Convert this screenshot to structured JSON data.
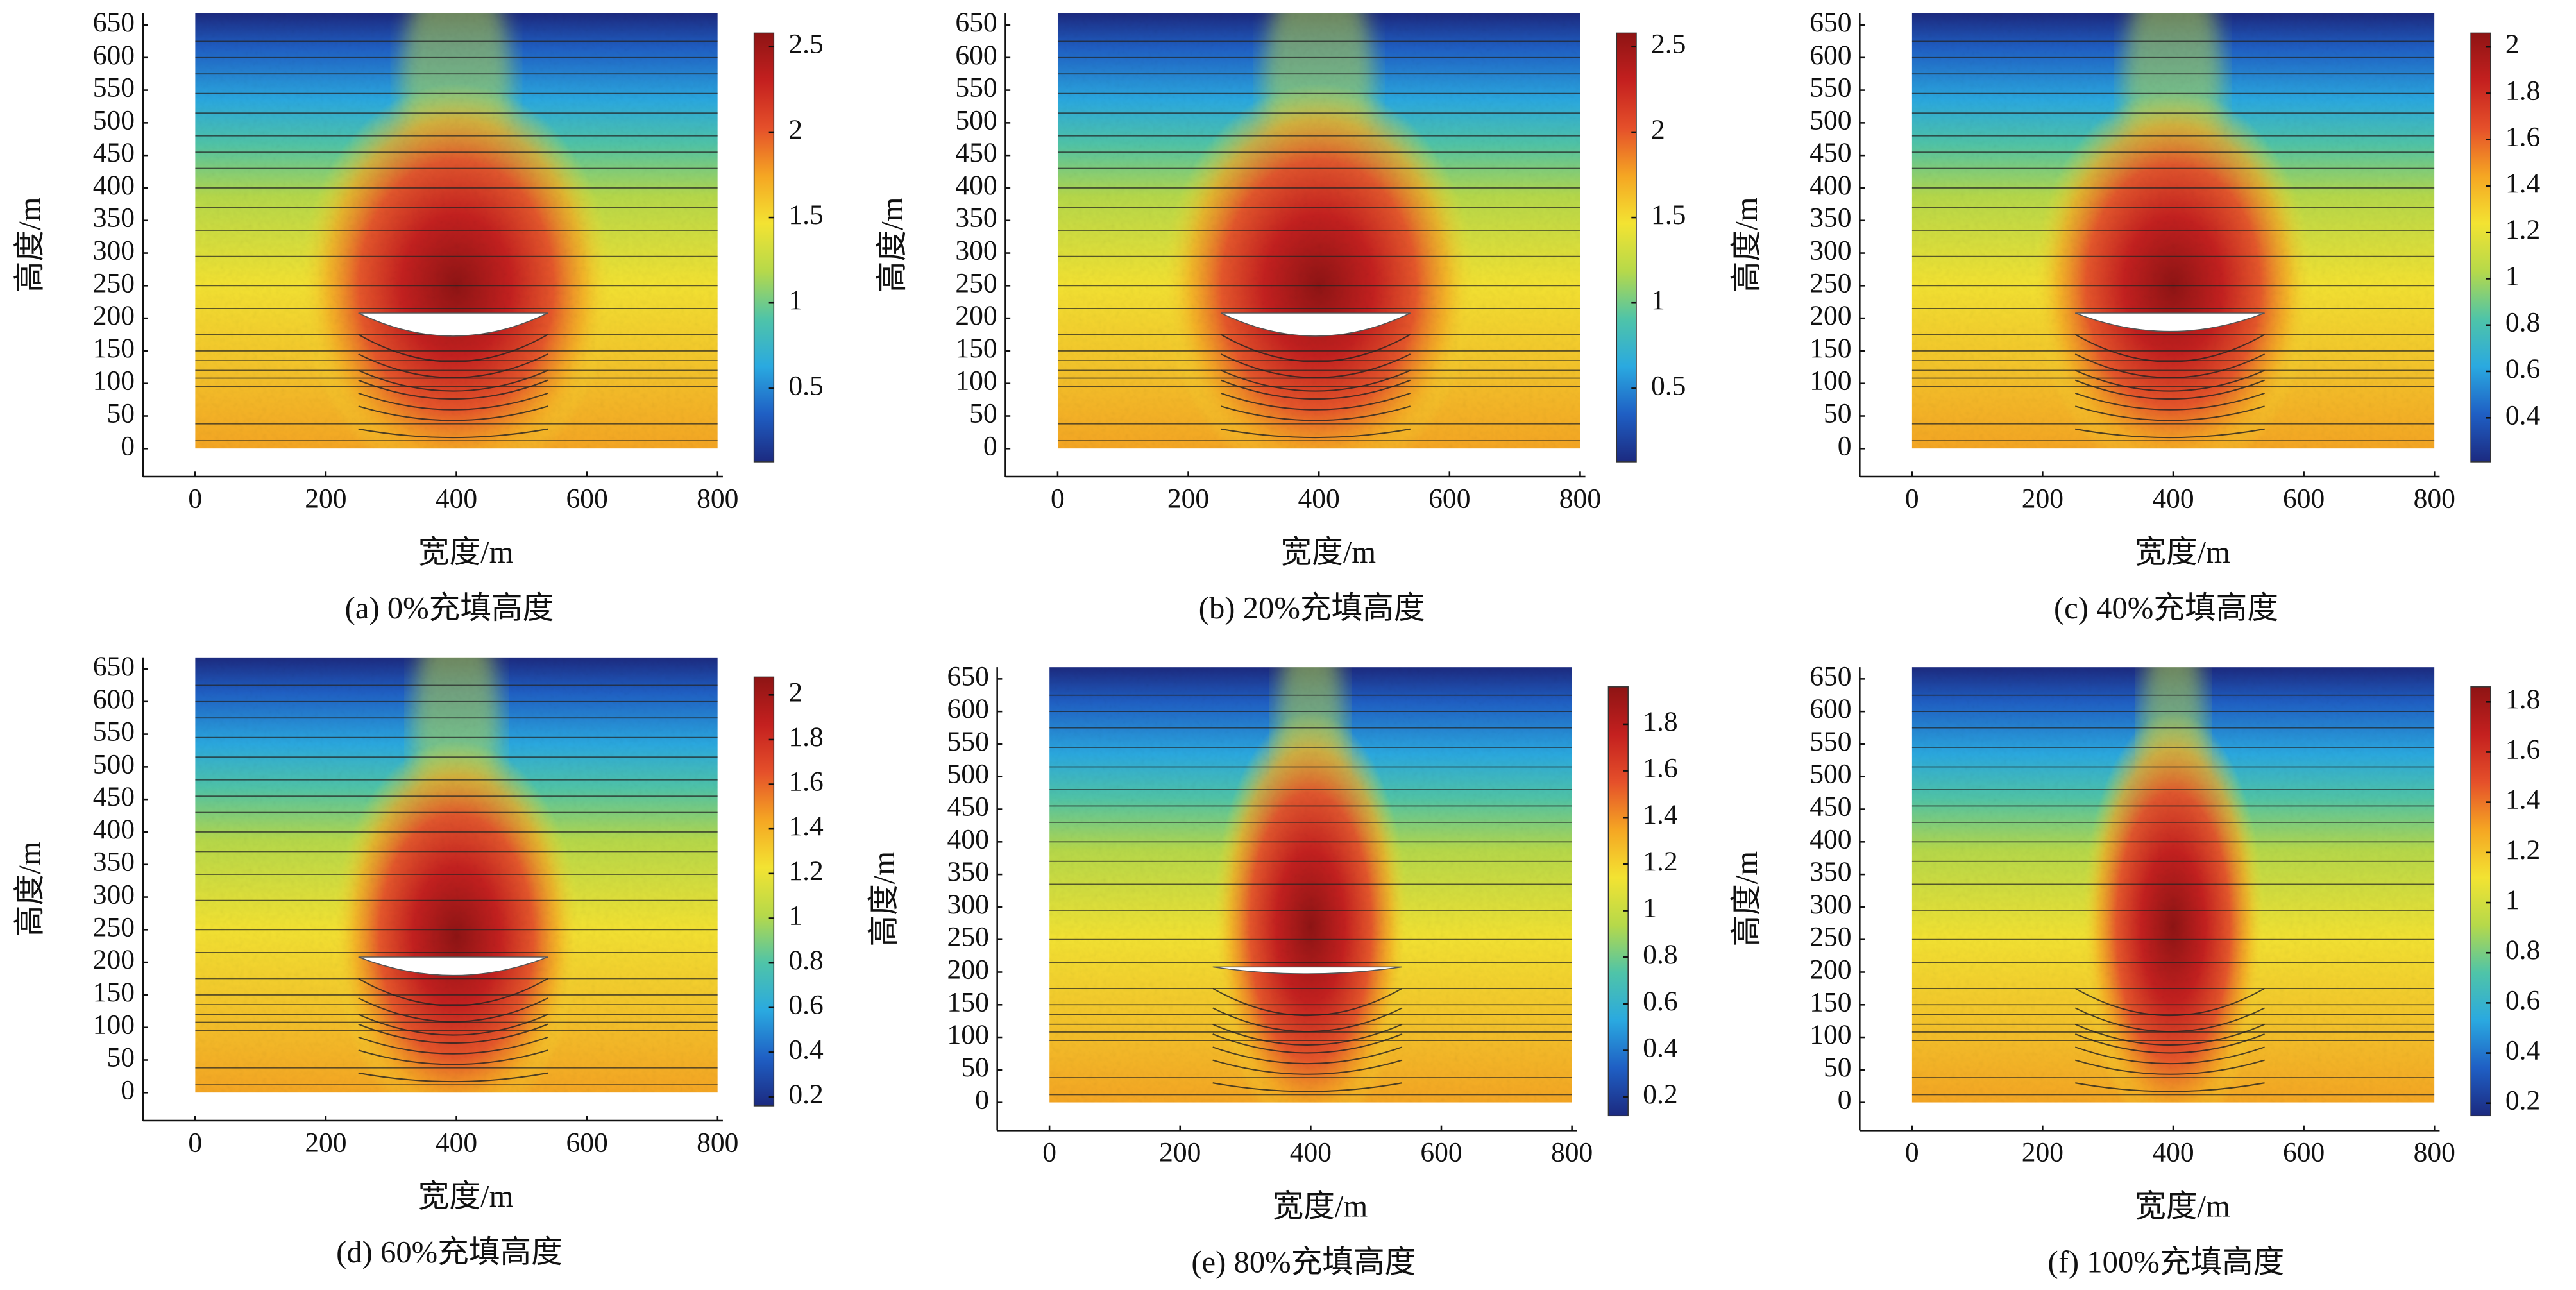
{
  "chart_data": [
    {
      "type": "heatmap",
      "title": "(a) 0%充填高度",
      "xlabel": "宽度/m",
      "ylabel": "高度/m",
      "xlim": [
        -80,
        808
      ],
      "xticks": [
        0,
        200,
        400,
        600,
        800
      ],
      "ylim": [
        -43,
        668
      ],
      "yticks": [
        0,
        50,
        100,
        150,
        200,
        250,
        300,
        350,
        400,
        450,
        500,
        550,
        600,
        650
      ],
      "colorbar": {
        "clim": [
          0.07,
          2.58
        ],
        "ticks": [
          0.5,
          1,
          1.5,
          2,
          2.5
        ]
      },
      "colormap": [
        "#1c2a80",
        "#1f5fc4",
        "#2aa9e0",
        "#4fc4a8",
        "#b6d94a",
        "#f3e332",
        "#f5a623",
        "#e5502a",
        "#c4201f",
        "#8e1414"
      ]
    },
    {
      "type": "heatmap",
      "title": "(b) 20%充填高度",
      "xlabel": "宽度/m",
      "ylabel": "高度/m",
      "xlim": [
        -80,
        808
      ],
      "xticks": [
        0,
        200,
        400,
        600,
        800
      ],
      "ylim": [
        -43,
        668
      ],
      "yticks": [
        0,
        50,
        100,
        150,
        200,
        250,
        300,
        350,
        400,
        450,
        500,
        550,
        600,
        650
      ],
      "colorbar": {
        "clim": [
          0.07,
          2.58
        ],
        "ticks": [
          0.5,
          1,
          1.5,
          2,
          2.5
        ]
      },
      "colormap": [
        "#1c2a80",
        "#1f5fc4",
        "#2aa9e0",
        "#4fc4a8",
        "#b6d94a",
        "#f3e332",
        "#f5a623",
        "#e5502a",
        "#c4201f",
        "#8e1414"
      ]
    },
    {
      "type": "heatmap",
      "title": "(c) 40%充填高度",
      "xlabel": "宽度/m",
      "ylabel": "高度/m",
      "xlim": [
        -80,
        808
      ],
      "xticks": [
        0,
        200,
        400,
        600,
        800
      ],
      "ylim": [
        -43,
        668
      ],
      "yticks": [
        0,
        50,
        100,
        150,
        200,
        250,
        300,
        350,
        400,
        450,
        500,
        550,
        600,
        650
      ],
      "colorbar": {
        "clim": [
          0.21,
          2.06
        ],
        "ticks": [
          0.4,
          0.6,
          0.8,
          1,
          1.2,
          1.4,
          1.6,
          1.8,
          2
        ]
      },
      "colormap": [
        "#1c2a80",
        "#1f5fc4",
        "#2aa9e0",
        "#4fc4a8",
        "#b6d94a",
        "#f3e332",
        "#f5a623",
        "#e5502a",
        "#c4201f",
        "#8e1414"
      ]
    },
    {
      "type": "heatmap",
      "title": "(d) 60%充填高度",
      "xlabel": "宽度/m",
      "ylabel": "高度/m",
      "xlim": [
        -80,
        808
      ],
      "xticks": [
        0,
        200,
        400,
        600,
        800
      ],
      "ylim": [
        -43,
        668
      ],
      "yticks": [
        0,
        50,
        100,
        150,
        200,
        250,
        300,
        350,
        400,
        450,
        500,
        550,
        600,
        650
      ],
      "colorbar": {
        "clim": [
          0.16,
          2.08
        ],
        "ticks": [
          0.2,
          0.4,
          0.6,
          0.8,
          1,
          1.2,
          1.4,
          1.6,
          1.8,
          2
        ]
      },
      "colormap": [
        "#1c2a80",
        "#1f5fc4",
        "#2aa9e0",
        "#4fc4a8",
        "#b6d94a",
        "#f3e332",
        "#f5a623",
        "#e5502a",
        "#c4201f",
        "#8e1414"
      ]
    },
    {
      "type": "heatmap",
      "title": "(e) 80%充填高度",
      "xlabel": "宽度/m",
      "ylabel": "高度/m",
      "xlim": [
        -80,
        808
      ],
      "xticks": [
        0,
        200,
        400,
        600,
        800
      ],
      "ylim": [
        -43,
        668
      ],
      "yticks": [
        0,
        50,
        100,
        150,
        200,
        250,
        300,
        350,
        400,
        450,
        500,
        550,
        600,
        650
      ],
      "colorbar": {
        "clim": [
          0.12,
          1.96
        ],
        "ticks": [
          0.2,
          0.4,
          0.6,
          0.8,
          1,
          1.2,
          1.4,
          1.6,
          1.8
        ]
      },
      "colormap": [
        "#1c2a80",
        "#1f5fc4",
        "#2aa9e0",
        "#4fc4a8",
        "#b6d94a",
        "#f3e332",
        "#f5a623",
        "#e5502a",
        "#c4201f",
        "#8e1414"
      ]
    },
    {
      "type": "heatmap",
      "title": "(f) 100%充填高度",
      "xlabel": "宽度/m",
      "ylabel": "高度/m",
      "xlim": [
        -80,
        808
      ],
      "xticks": [
        0,
        200,
        400,
        600,
        800
      ],
      "ylim": [
        -43,
        668
      ],
      "yticks": [
        0,
        50,
        100,
        150,
        200,
        250,
        300,
        350,
        400,
        450,
        500,
        550,
        600,
        650
      ],
      "colorbar": {
        "clim": [
          0.15,
          1.86
        ],
        "ticks": [
          0.2,
          0.4,
          0.6,
          0.8,
          1,
          1.2,
          1.4,
          1.6,
          1.8
        ]
      },
      "colormap": [
        "#1c2a80",
        "#1f5fc4",
        "#2aa9e0",
        "#4fc4a8",
        "#b6d94a",
        "#f3e332",
        "#f5a623",
        "#e5502a",
        "#c4201f",
        "#8e1414"
      ]
    }
  ]
}
